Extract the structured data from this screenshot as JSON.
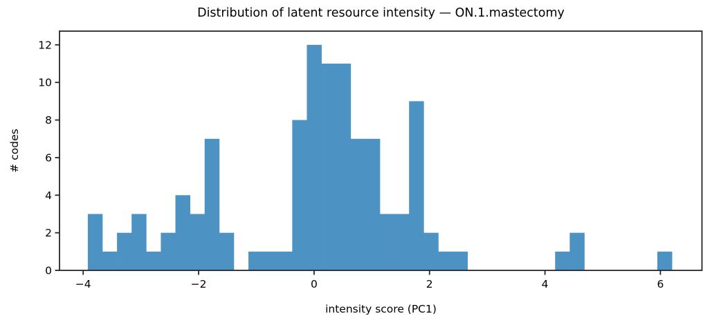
{
  "chart_data": {
    "type": "bar",
    "subtype": "histogram",
    "title": "Distribution of latent resource intensity — ON.1.mastectomy",
    "xlabel": "intensity score (PC1)",
    "ylabel": "# codes",
    "bin_start": -3.92,
    "bin_width": 0.253,
    "counts": [
      3,
      1,
      2,
      3,
      1,
      2,
      4,
      3,
      7,
      2,
      0,
      1,
      1,
      1,
      8,
      12,
      11,
      11,
      7,
      7,
      3,
      3,
      9,
      2,
      1,
      1,
      0,
      0,
      0,
      0,
      0,
      0,
      1,
      2,
      0,
      0,
      0,
      0,
      0,
      1
    ],
    "total_codes": 110,
    "xlim": [
      -4.41,
      6.72
    ],
    "ylim": [
      0,
      12.73
    ],
    "xticks": [
      {
        "value": -4,
        "label": "−4"
      },
      {
        "value": -2,
        "label": "−2"
      },
      {
        "value": 0,
        "label": "0"
      },
      {
        "value": 2,
        "label": "2"
      },
      {
        "value": 4,
        "label": "4"
      },
      {
        "value": 6,
        "label": "6"
      }
    ],
    "yticks": [
      {
        "value": 0,
        "label": "0"
      },
      {
        "value": 2,
        "label": "2"
      },
      {
        "value": 4,
        "label": "4"
      },
      {
        "value": 6,
        "label": "6"
      },
      {
        "value": 8,
        "label": "8"
      },
      {
        "value": 10,
        "label": "10"
      },
      {
        "value": 12,
        "label": "12"
      }
    ],
    "grid": false,
    "legend": "none",
    "bar_color": "#4c92c3",
    "axis_color": "#262626",
    "text_color": "#000000",
    "background_color": "#ffffff"
  }
}
